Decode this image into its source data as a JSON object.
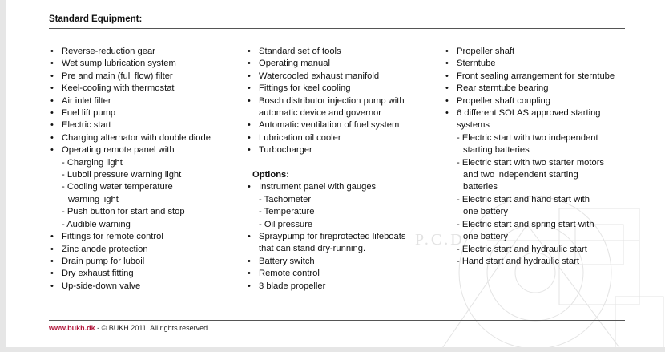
{
  "header": {
    "title": "Standard Equipment:"
  },
  "columns": [
    {
      "items": [
        {
          "lines": [
            "Reverse-reduction gear"
          ]
        },
        {
          "lines": [
            "Wet sump lubrication system"
          ]
        },
        {
          "lines": [
            "Pre and main (full flow) filter"
          ]
        },
        {
          "lines": [
            "Keel-cooling with thermostat"
          ]
        },
        {
          "lines": [
            "Air inlet filter"
          ]
        },
        {
          "lines": [
            "Fuel lift pump"
          ]
        },
        {
          "lines": [
            "Electric start"
          ]
        },
        {
          "lines": [
            "Charging alternator with double diode"
          ]
        },
        {
          "lines": [
            "Operating remote panel with"
          ],
          "sub": [
            {
              "lines": [
                "- Charging light"
              ]
            },
            {
              "lines": [
                "- Luboil pressure warning light"
              ]
            },
            {
              "lines": [
                "- Cooling water temperature",
                "warning light"
              ]
            },
            {
              "lines": [
                "- Push button for start and stop"
              ]
            },
            {
              "lines": [
                "- Audible warning"
              ]
            }
          ]
        },
        {
          "lines": [
            "Fittings for remote control"
          ]
        },
        {
          "lines": [
            "Zinc anode protection"
          ]
        },
        {
          "lines": [
            "Drain pump for luboil"
          ]
        },
        {
          "lines": [
            "Dry exhaust fitting"
          ]
        },
        {
          "lines": [
            "Up-side-down valve"
          ]
        }
      ]
    },
    {
      "items": [
        {
          "lines": [
            "Standard set of tools"
          ]
        },
        {
          "lines": [
            "Operating manual"
          ]
        },
        {
          "lines": [
            "Watercooled exhaust manifold"
          ]
        },
        {
          "lines": [
            "Fittings for keel cooling"
          ]
        },
        {
          "lines": [
            "Bosch distributor injection pump with",
            "automatic device and governor"
          ]
        },
        {
          "lines": [
            "Automatic ventilation of fuel system"
          ]
        },
        {
          "lines": [
            "Lubrication oil cooler"
          ]
        },
        {
          "lines": [
            "Turbocharger"
          ]
        }
      ],
      "options_heading": "Options:",
      "options": [
        {
          "lines": [
            "Instrument panel with gauges"
          ],
          "sub": [
            {
              "lines": [
                "- Tachometer"
              ]
            },
            {
              "lines": [
                "- Temperature"
              ]
            },
            {
              "lines": [
                "- Oil pressure"
              ]
            }
          ]
        },
        {
          "lines": [
            "Spraypump for fireprotected lifeboats",
            "that can stand dry-running."
          ]
        },
        {
          "lines": [
            "Battery switch"
          ]
        },
        {
          "lines": [
            "Remote control"
          ]
        },
        {
          "lines": [
            "3 blade propeller"
          ]
        }
      ]
    },
    {
      "items": [
        {
          "lines": [
            "Propeller shaft"
          ]
        },
        {
          "lines": [
            "Sterntube"
          ]
        },
        {
          "lines": [
            "Front sealing arrangement for sterntube"
          ]
        },
        {
          "lines": [
            "Rear sterntube bearing"
          ]
        },
        {
          "lines": [
            "Propeller shaft coupling"
          ]
        },
        {
          "lines": [
            "6 different SOLAS approved starting",
            "systems"
          ],
          "sub": [
            {
              "lines": [
                "- Electric start with two independent",
                "starting batteries"
              ]
            },
            {
              "lines": [
                "- Electric start with two starter motors",
                "and two independent starting",
                "batteries"
              ]
            },
            {
              "lines": [
                "- Electric start and hand start with",
                "one battery"
              ]
            },
            {
              "lines": [
                "- Electric start and spring start with",
                "one battery"
              ]
            },
            {
              "lines": [
                "- Electric start and hydraulic start"
              ]
            },
            {
              "lines": [
                "- Hand start and hydraulic start"
              ]
            }
          ]
        }
      ]
    }
  ],
  "footer": {
    "url": "www.bukh.dk",
    "text": " - © BUKH 2011. All rights reserved."
  },
  "watermark": {
    "text": "P.C.D"
  },
  "colors": {
    "link": "#b0153a",
    "rule": "#555555"
  }
}
